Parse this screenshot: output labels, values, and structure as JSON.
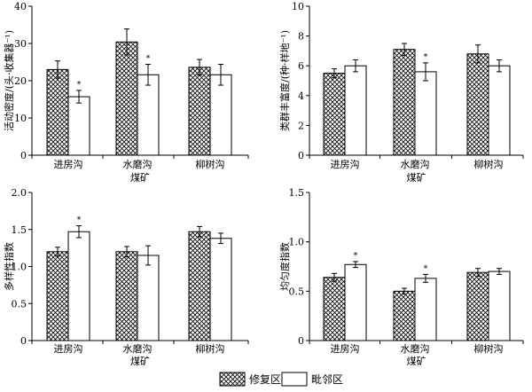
{
  "chart_data": [
    {
      "type": "bar",
      "panel": "top-left",
      "categories": [
        "进房沟",
        "水磨沟",
        "柳树沟"
      ],
      "xlabel": "煤矿",
      "ylabel": "活动密度/(头·收集器⁻¹)",
      "ylim": [
        0,
        40
      ],
      "yticks": [
        0,
        10,
        20,
        30,
        40
      ],
      "series": [
        {
          "name": "修复区",
          "values": [
            23.0,
            30.4,
            23.6
          ],
          "errors": [
            2.3,
            3.5,
            2.1
          ]
        },
        {
          "name": "毗邻区",
          "values": [
            15.7,
            21.6,
            21.6
          ],
          "errors": [
            1.7,
            2.8,
            2.8
          ]
        }
      ],
      "significance": [
        "*",
        "*",
        ""
      ]
    },
    {
      "type": "bar",
      "panel": "top-right",
      "categories": [
        "进房沟",
        "水磨沟",
        "柳树沟"
      ],
      "xlabel": "煤矿",
      "ylabel": "类群丰富度/(种·样地⁻¹)",
      "ylim": [
        0,
        10
      ],
      "yticks": [
        0,
        2,
        4,
        6,
        8,
        10
      ],
      "series": [
        {
          "name": "修复区",
          "values": [
            5.5,
            7.1,
            6.8
          ],
          "errors": [
            0.3,
            0.4,
            0.6
          ]
        },
        {
          "name": "毗邻区",
          "values": [
            6.0,
            5.6,
            6.0
          ],
          "errors": [
            0.4,
            0.6,
            0.4
          ]
        }
      ],
      "significance": [
        "",
        "*",
        ""
      ]
    },
    {
      "type": "bar",
      "panel": "bottom-left",
      "categories": [
        "进房沟",
        "水磨沟",
        "柳树沟"
      ],
      "xlabel": "煤矿",
      "ylabel": "多样性指数",
      "ylim": [
        0,
        2.0
      ],
      "yticks": [
        0,
        0.5,
        1.0,
        1.5,
        2.0
      ],
      "ytick_labels": [
        "0",
        "0.5",
        "1.0",
        "1.5",
        "2.0"
      ],
      "series": [
        {
          "name": "修复区",
          "values": [
            1.2,
            1.2,
            1.47
          ],
          "errors": [
            0.06,
            0.07,
            0.07
          ]
        },
        {
          "name": "毗邻区",
          "values": [
            1.47,
            1.15,
            1.38
          ],
          "errors": [
            0.08,
            0.13,
            0.07
          ]
        }
      ],
      "significance": [
        "*",
        "",
        ""
      ]
    },
    {
      "type": "bar",
      "panel": "bottom-right",
      "categories": [
        "进房沟",
        "水磨沟",
        "柳树沟"
      ],
      "xlabel": "煤矿",
      "ylabel": "均匀度指数",
      "ylim": [
        0,
        1.5
      ],
      "yticks": [
        0,
        0.5,
        1.0,
        1.5
      ],
      "ytick_labels": [
        "0",
        "0.5",
        "1.0",
        "1.5"
      ],
      "series": [
        {
          "name": "修复区",
          "values": [
            0.64,
            0.5,
            0.69
          ],
          "errors": [
            0.04,
            0.03,
            0.04
          ]
        },
        {
          "name": "毗邻区",
          "values": [
            0.77,
            0.63,
            0.7
          ],
          "errors": [
            0.03,
            0.04,
            0.03
          ]
        }
      ],
      "significance": [
        "*",
        "*",
        ""
      ]
    }
  ],
  "legend": {
    "items": [
      {
        "label": "修复区",
        "pattern": "crosshatch"
      },
      {
        "label": "毗邻区",
        "pattern": "white"
      }
    ]
  },
  "colors": {
    "axis": "#000000",
    "fill_open": "#ffffff",
    "hatch": "#000000"
  }
}
